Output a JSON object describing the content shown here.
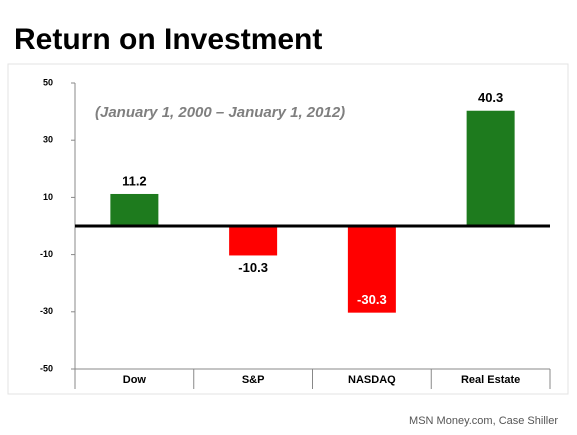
{
  "chart_data": {
    "type": "bar",
    "title": "Return on Investment",
    "subtitle": "(January 1, 2000 – January 1, 2012)",
    "source": "MSN Money.com, Case Shiller",
    "categories": [
      "Dow",
      "S&P",
      "NASDAQ",
      "Real Estate"
    ],
    "values": [
      11.2,
      -10.3,
      -30.3,
      40.3
    ],
    "colors": [
      "#1e7b1e",
      "#ff0000",
      "#ff0000",
      "#1e7b1e"
    ],
    "ylim": [
      -50,
      50
    ],
    "yticks": [
      50,
      30,
      10,
      -10,
      -30,
      -50
    ]
  }
}
